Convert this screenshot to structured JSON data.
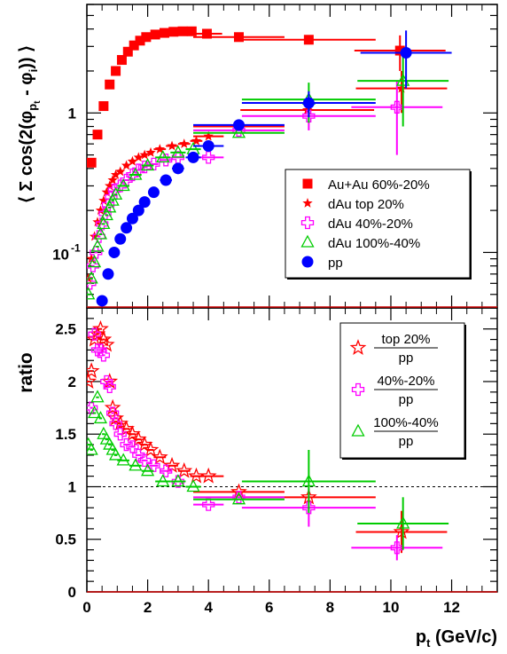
{
  "chart_data": [
    {
      "type": "scatter",
      "panel": "top",
      "ylabel_parts": [
        "⟨ Σ cos(2(φ",
        "p",
        "t",
        " - φ",
        "i",
        ")) ⟩"
      ],
      "ylim": [
        0.04,
        6.0
      ],
      "yscale": "log",
      "xlim": [
        0,
        13.5
      ],
      "yticks": [
        {
          "v": 0.1,
          "base": "10",
          "exp": "-1"
        },
        {
          "v": 1,
          "label": "1"
        }
      ],
      "legend_position": "middle-right",
      "series": [
        {
          "name": "Au+Au 60%-20%",
          "marker": "square",
          "color": "#ff0000",
          "points": [
            [
              0.15,
              0.44
            ],
            [
              0.35,
              0.7
            ],
            [
              0.55,
              1.12
            ],
            [
              0.75,
              1.6
            ],
            [
              0.95,
              2.0
            ],
            [
              1.15,
              2.4
            ],
            [
              1.35,
              2.75
            ],
            [
              1.55,
              3.05
            ],
            [
              1.75,
              3.3
            ],
            [
              1.95,
              3.5
            ],
            [
              2.25,
              3.65
            ],
            [
              2.55,
              3.75
            ],
            [
              2.85,
              3.82
            ],
            [
              3.15,
              3.85
            ],
            [
              3.45,
              3.85
            ],
            [
              3.95,
              3.7
            ],
            [
              5.0,
              3.5
            ],
            [
              7.3,
              3.35
            ],
            [
              10.3,
              2.8
            ]
          ],
          "xerr": [
            0.1,
            0.1,
            0.1,
            0.1,
            0.1,
            0.1,
            0.1,
            0.1,
            0.1,
            0.1,
            0.15,
            0.15,
            0.15,
            0.15,
            0.15,
            0.5,
            1.5,
            2.2,
            1.5
          ],
          "yerr": [
            0,
            0,
            0,
            0,
            0,
            0,
            0,
            0,
            0,
            0,
            0,
            0,
            0,
            0,
            0,
            0,
            0,
            0,
            0.8
          ]
        },
        {
          "name": "dAu top 20%",
          "marker": "star",
          "color": "#ff0000",
          "points": [
            [
              0.05,
              0.065
            ],
            [
              0.15,
              0.09
            ],
            [
              0.25,
              0.13
            ],
            [
              0.35,
              0.165
            ],
            [
              0.45,
              0.2
            ],
            [
              0.55,
              0.235
            ],
            [
              0.65,
              0.27
            ],
            [
              0.75,
              0.3
            ],
            [
              0.85,
              0.33
            ],
            [
              0.95,
              0.36
            ],
            [
              1.1,
              0.38
            ],
            [
              1.3,
              0.42
            ],
            [
              1.5,
              0.45
            ],
            [
              1.7,
              0.48
            ],
            [
              1.9,
              0.5
            ],
            [
              2.1,
              0.52
            ],
            [
              2.4,
              0.55
            ],
            [
              2.8,
              0.58
            ],
            [
              3.2,
              0.6
            ],
            [
              3.6,
              0.63
            ],
            [
              4.0,
              0.68
            ],
            [
              5.0,
              0.8
            ],
            [
              7.25,
              1.05
            ],
            [
              10.35,
              1.5
            ]
          ],
          "xerr": [
            0.05,
            0.05,
            0.05,
            0.05,
            0.05,
            0.05,
            0.05,
            0.05,
            0.05,
            0.05,
            0.1,
            0.1,
            0.1,
            0.1,
            0.1,
            0.1,
            0.2,
            0.2,
            0.2,
            0.2,
            0.5,
            1.5,
            2.2,
            1.5
          ],
          "yerr": [
            0,
            0,
            0,
            0,
            0,
            0,
            0,
            0,
            0,
            0,
            0,
            0,
            0,
            0,
            0,
            0,
            0,
            0,
            0,
            0,
            0,
            0,
            0,
            0.5
          ]
        },
        {
          "name": "dAu 40%-20%",
          "marker": "cross",
          "color": "#ff00ff",
          "points": [
            [
              0.1,
              0.06
            ],
            [
              0.2,
              0.08
            ],
            [
              0.3,
              0.1
            ],
            [
              0.4,
              0.13
            ],
            [
              0.5,
              0.16
            ],
            [
              0.6,
              0.19
            ],
            [
              0.7,
              0.22
            ],
            [
              0.8,
              0.25
            ],
            [
              0.9,
              0.28
            ],
            [
              1.1,
              0.3
            ],
            [
              1.3,
              0.33
            ],
            [
              1.5,
              0.36
            ],
            [
              1.7,
              0.39
            ],
            [
              1.9,
              0.41
            ],
            [
              2.2,
              0.43
            ],
            [
              2.6,
              0.46
            ],
            [
              3.0,
              0.48
            ],
            [
              4.0,
              0.48
            ],
            [
              5.0,
              0.75
            ],
            [
              7.3,
              0.95
            ],
            [
              10.2,
              1.1
            ]
          ],
          "xerr": [
            0.05,
            0.05,
            0.05,
            0.05,
            0.05,
            0.05,
            0.05,
            0.05,
            0.05,
            0.1,
            0.1,
            0.1,
            0.1,
            0.1,
            0.15,
            0.2,
            0.2,
            0.5,
            1.5,
            2.2,
            1.5
          ],
          "yerr": [
            0,
            0,
            0,
            0,
            0,
            0,
            0,
            0,
            0,
            0,
            0,
            0,
            0,
            0,
            0,
            0,
            0,
            0,
            0,
            0.2,
            0.6
          ]
        },
        {
          "name": "dAu 100%-40%",
          "marker": "triangle",
          "color": "#00cc00",
          "points": [
            [
              0.05,
              0.05
            ],
            [
              0.15,
              0.065
            ],
            [
              0.25,
              0.085
            ],
            [
              0.35,
              0.11
            ],
            [
              0.45,
              0.135
            ],
            [
              0.55,
              0.16
            ],
            [
              0.65,
              0.185
            ],
            [
              0.75,
              0.21
            ],
            [
              0.85,
              0.235
            ],
            [
              0.95,
              0.26
            ],
            [
              1.2,
              0.3
            ],
            [
              1.6,
              0.36
            ],
            [
              2.0,
              0.42
            ],
            [
              2.5,
              0.48
            ],
            [
              3.0,
              0.52
            ],
            [
              3.5,
              0.55
            ],
            [
              5.0,
              0.72
            ],
            [
              7.3,
              1.25
            ],
            [
              10.4,
              1.7
            ]
          ],
          "xerr": [
            0.05,
            0.05,
            0.05,
            0.05,
            0.05,
            0.05,
            0.05,
            0.05,
            0.05,
            0.05,
            0.2,
            0.2,
            0.2,
            0.25,
            0.25,
            0.25,
            1.5,
            2.2,
            1.5
          ],
          "yerr": [
            0,
            0,
            0,
            0,
            0,
            0,
            0,
            0,
            0,
            0,
            0,
            0,
            0,
            0,
            0,
            0,
            0,
            0.4,
            0.9
          ]
        },
        {
          "name": "pp",
          "marker": "circle",
          "color": "#0000ff",
          "points": [
            [
              0.5,
              0.045
            ],
            [
              0.7,
              0.07
            ],
            [
              0.9,
              0.1
            ],
            [
              1.1,
              0.125
            ],
            [
              1.3,
              0.15
            ],
            [
              1.5,
              0.175
            ],
            [
              1.7,
              0.2
            ],
            [
              1.9,
              0.23
            ],
            [
              2.2,
              0.27
            ],
            [
              2.6,
              0.33
            ],
            [
              3.0,
              0.4
            ],
            [
              3.5,
              0.48
            ],
            [
              4.0,
              0.58
            ],
            [
              5.0,
              0.82
            ],
            [
              7.3,
              1.18
            ],
            [
              10.5,
              2.7
            ]
          ],
          "xerr": [
            0.1,
            0.1,
            0.1,
            0.1,
            0.1,
            0.1,
            0.1,
            0.1,
            0.15,
            0.2,
            0.2,
            0.25,
            0.5,
            1.5,
            2.2,
            1.5
          ],
          "yerr": [
            0,
            0,
            0,
            0,
            0,
            0,
            0,
            0,
            0,
            0,
            0,
            0,
            0,
            0,
            0.25,
            1.2
          ]
        }
      ]
    },
    {
      "type": "scatter",
      "panel": "bottom",
      "ylabel": "ratio",
      "xlabel_parts": [
        "p",
        "t",
        " (GeV/c)"
      ],
      "xlim": [
        0,
        13.5
      ],
      "ylim": [
        0,
        2.7
      ],
      "xticks": [
        0,
        2,
        4,
        6,
        8,
        10,
        12
      ],
      "yticks": [
        0,
        0.5,
        1,
        1.5,
        2,
        2.5
      ],
      "reference_line": 1,
      "legend_position": "top-right",
      "series": [
        {
          "name_num": "top 20%",
          "name_den": "pp",
          "marker": "open-star",
          "color": "#ff0000",
          "points": [
            [
              0.05,
              2.0
            ],
            [
              0.15,
              2.1
            ],
            [
              0.25,
              2.4
            ],
            [
              0.35,
              2.45
            ],
            [
              0.45,
              2.5
            ],
            [
              0.55,
              2.4
            ],
            [
              0.65,
              2.35
            ],
            [
              0.75,
              2.0
            ],
            [
              0.85,
              1.75
            ],
            [
              0.95,
              1.65
            ],
            [
              1.1,
              1.6
            ],
            [
              1.3,
              1.55
            ],
            [
              1.5,
              1.5
            ],
            [
              1.7,
              1.45
            ],
            [
              1.9,
              1.4
            ],
            [
              2.1,
              1.35
            ],
            [
              2.4,
              1.28
            ],
            [
              2.8,
              1.2
            ],
            [
              3.2,
              1.15
            ],
            [
              3.6,
              1.1
            ],
            [
              4.0,
              1.1
            ],
            [
              5.0,
              0.95
            ],
            [
              7.3,
              0.9
            ],
            [
              10.35,
              0.57
            ]
          ],
          "xerr": [
            0.05,
            0.05,
            0.05,
            0.05,
            0.05,
            0.05,
            0.05,
            0.05,
            0.05,
            0.05,
            0.1,
            0.1,
            0.1,
            0.1,
            0.1,
            0.1,
            0.2,
            0.2,
            0.2,
            0.2,
            0.5,
            1.5,
            2.2,
            1.5
          ],
          "yerr": [
            0,
            0,
            0,
            0,
            0,
            0,
            0,
            0,
            0,
            0,
            0,
            0,
            0,
            0,
            0,
            0,
            0,
            0,
            0,
            0,
            0,
            0,
            0,
            0.2
          ]
        },
        {
          "name_num": "40%-20%",
          "name_den": "pp",
          "marker": "cross",
          "color": "#ff00ff",
          "points": [
            [
              0.15,
              1.75
            ],
            [
              0.25,
              2.45
            ],
            [
              0.35,
              2.3
            ],
            [
              0.45,
              2.3
            ],
            [
              0.55,
              2.25
            ],
            [
              0.65,
              2.0
            ],
            [
              0.75,
              1.95
            ],
            [
              0.85,
              1.7
            ],
            [
              0.95,
              1.6
            ],
            [
              1.1,
              1.5
            ],
            [
              1.3,
              1.4
            ],
            [
              1.5,
              1.38
            ],
            [
              1.7,
              1.3
            ],
            [
              1.9,
              1.25
            ],
            [
              2.2,
              1.2
            ],
            [
              2.6,
              1.15
            ],
            [
              3.0,
              1.05
            ],
            [
              4.0,
              0.83
            ],
            [
              5.0,
              0.9
            ],
            [
              7.3,
              0.8
            ],
            [
              10.2,
              0.42
            ]
          ],
          "xerr": [
            0.05,
            0.05,
            0.05,
            0.05,
            0.05,
            0.05,
            0.05,
            0.05,
            0.05,
            0.1,
            0.1,
            0.1,
            0.1,
            0.1,
            0.15,
            0.2,
            0.2,
            0.5,
            1.5,
            2.2,
            1.5
          ],
          "yerr": [
            0,
            0,
            0,
            0,
            0,
            0,
            0,
            0,
            0,
            0,
            0,
            0,
            0,
            0,
            0,
            0,
            0,
            0,
            0,
            0.18,
            0.12
          ]
        },
        {
          "name_num": "100%-40%",
          "name_den": "pp",
          "marker": "triangle",
          "color": "#00cc00",
          "points": [
            [
              0.05,
              1.4
            ],
            [
              0.15,
              1.35
            ],
            [
              0.25,
              1.7
            ],
            [
              0.35,
              1.85
            ],
            [
              0.45,
              1.65
            ],
            [
              0.55,
              1.5
            ],
            [
              0.65,
              1.45
            ],
            [
              0.75,
              1.4
            ],
            [
              0.85,
              1.35
            ],
            [
              0.95,
              1.3
            ],
            [
              1.2,
              1.25
            ],
            [
              1.6,
              1.2
            ],
            [
              2.0,
              1.15
            ],
            [
              2.5,
              1.05
            ],
            [
              3.0,
              1.05
            ],
            [
              3.5,
              1.0
            ],
            [
              5.0,
              0.88
            ],
            [
              7.3,
              1.05
            ],
            [
              10.4,
              0.65
            ]
          ],
          "xerr": [
            0.05,
            0.05,
            0.05,
            0.05,
            0.05,
            0.05,
            0.05,
            0.05,
            0.05,
            0.05,
            0.2,
            0.2,
            0.2,
            0.25,
            0.25,
            0.25,
            1.5,
            2.2,
            1.5
          ],
          "yerr": [
            0,
            0,
            0,
            0,
            0,
            0,
            0,
            0,
            0,
            0,
            0,
            0,
            0,
            0,
            0,
            0,
            0,
            0.3,
            0.25
          ]
        }
      ]
    }
  ]
}
